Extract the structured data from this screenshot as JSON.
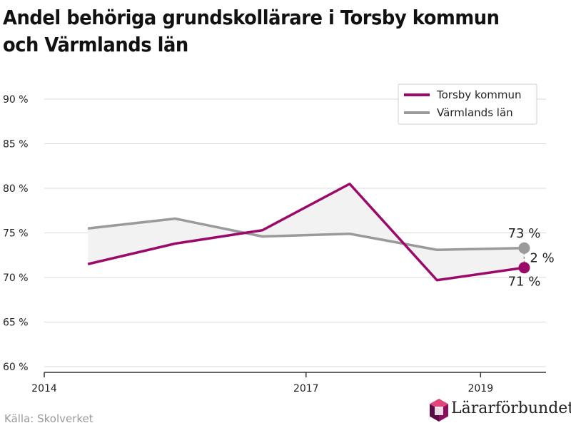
{
  "title": "Andel behöriga grundskollärare i Torsby kommun och Värmlands län",
  "source": "Källa: Skolverket",
  "logo": {
    "text": "Lärarförbundet"
  },
  "colors": {
    "torsby": "#9b0a68",
    "varmland": "#9a9a9a",
    "band": "#f2f2f2",
    "grid": "#d9d9d9"
  },
  "chart_data": {
    "type": "line",
    "title": "Andel behöriga grundskollärare i Torsby kommun och Värmlands län",
    "x_labels": [
      "2014",
      "2017",
      "2019"
    ],
    "x": [
      2014.5,
      2015.5,
      2016.5,
      2017.5,
      2018.5,
      2019.5
    ],
    "xlim": [
      2014,
      2019.75
    ],
    "ylim": [
      60,
      90
    ],
    "y_ticks": [
      "60 %",
      "65 %",
      "70 %",
      "75 %",
      "80 %",
      "85 %",
      "90 %"
    ],
    "grid": true,
    "legend_position": "top-right",
    "series": [
      {
        "name": "Torsby kommun",
        "values": [
          71.5,
          73.8,
          75.3,
          80.5,
          69.7,
          71.1
        ]
      },
      {
        "name": "Värmlands län",
        "values": [
          75.5,
          76.6,
          74.6,
          74.9,
          73.1,
          73.3
        ]
      }
    ],
    "annotations": {
      "varmland_end": "73 %",
      "torsby_end": "71 %",
      "difference": "2 %"
    }
  }
}
